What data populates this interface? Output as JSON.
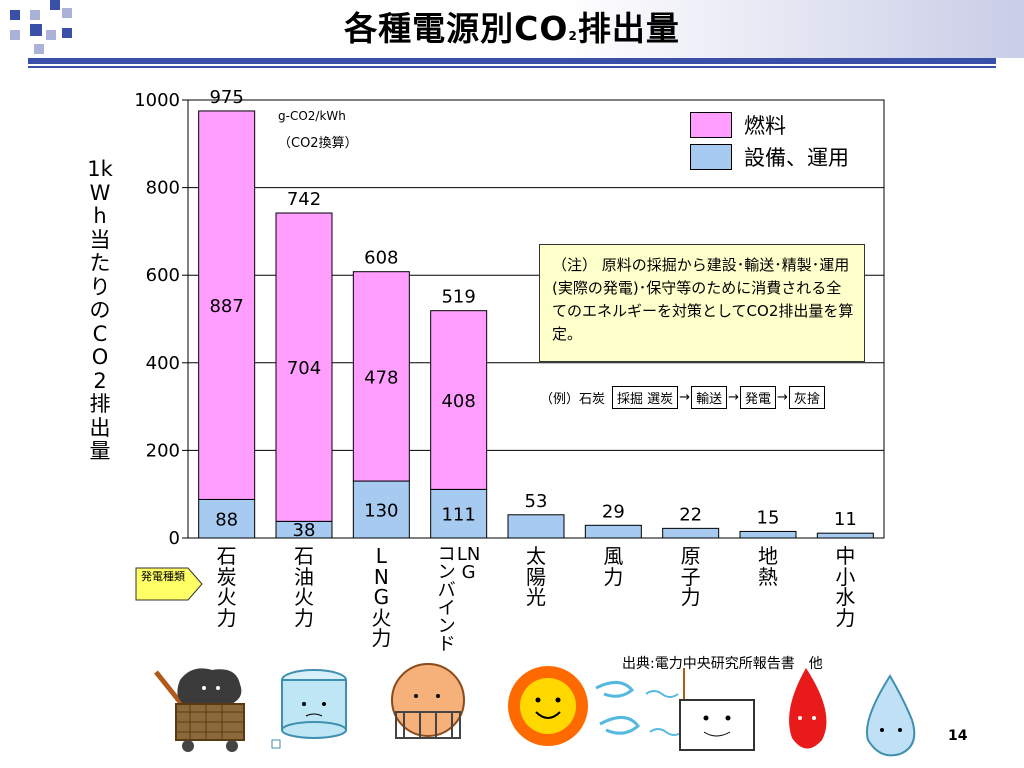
{
  "title_main": "各種電源別CO",
  "title_sub": "2",
  "title_tail": "排出量",
  "ylabel": "1kWh当たりのCO2排出量",
  "unit_line1": "g-CO2/kWh",
  "unit_line2": "（CO2換算）",
  "category_tag": "発電種類",
  "note": "（注） 原料の採掘から建設･輸送･精製･運用(実際の発電)･保守等のために消費される全てのエネルギーを対策としてCO2排出量を算定。",
  "example": {
    "label": "（例）石炭",
    "steps": [
      "採掘 選炭",
      "輸送",
      "発電",
      "灰捨"
    ],
    "arrow": "→"
  },
  "source": "出典:電力中央研究所報告書　他",
  "page_number": "14",
  "colors": {
    "fuel": "#ff9eff",
    "facility": "#a6caf0",
    "title_rule": "#3a4fa8"
  },
  "icons": [
    "coal-icon",
    "oil-tank-icon",
    "lng-tank-icon",
    "sun-icon",
    "wind-icon",
    "nuclear-plant-icon",
    "geothermal-flame-icon",
    "water-drop-icon"
  ],
  "chart_data": {
    "type": "bar",
    "stacked": true,
    "categories": [
      "石炭火力",
      "石油火力",
      "LNG火力",
      "LNGコンバインド",
      "太陽光",
      "風力",
      "原子力",
      "地熱",
      "中小水力"
    ],
    "series": [
      {
        "name": "設備、運用",
        "values": [
          88,
          38,
          130,
          111,
          53,
          29,
          22,
          15,
          11
        ]
      },
      {
        "name": "燃料",
        "values": [
          887,
          704,
          478,
          408,
          null,
          null,
          null,
          null,
          null
        ]
      }
    ],
    "totals": [
      975,
      742,
      608,
      519,
      53,
      29,
      22,
      15,
      11
    ],
    "yticks": [
      0,
      200,
      400,
      600,
      800,
      1000
    ],
    "ylim": [
      0,
      1000
    ],
    "grid": true,
    "legend": "top-right"
  }
}
